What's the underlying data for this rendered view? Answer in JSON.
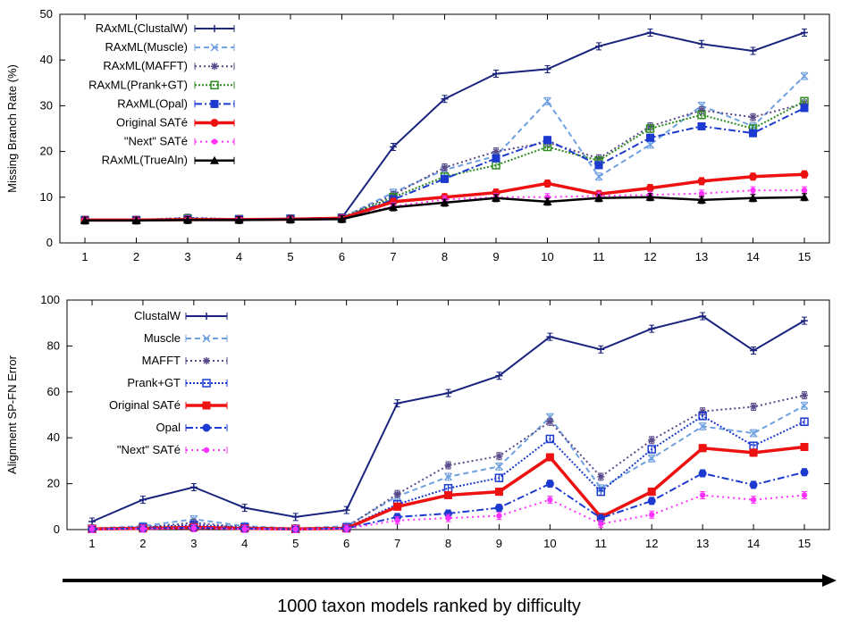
{
  "caption": "1000 taxon models ranked by difficulty",
  "chart_data": [
    {
      "type": "line",
      "ylabel": "Missing Branch Rate (%)",
      "xlabel": "",
      "x": [
        1,
        2,
        3,
        4,
        5,
        6,
        7,
        8,
        9,
        10,
        11,
        12,
        13,
        14,
        15
      ],
      "ylim": [
        0,
        50
      ],
      "yticks": [
        0,
        10,
        20,
        30,
        40,
        50
      ],
      "grid": false,
      "legend": "top-left",
      "series": [
        {
          "name": "RAxML(ClustalW)",
          "color": "#1a237e",
          "dash": "",
          "marker": "plus",
          "values": [
            5,
            5,
            5.2,
            5.2,
            5.3,
            5.5,
            21,
            31.5,
            37,
            38,
            43,
            46,
            43.5,
            42,
            46
          ]
        },
        {
          "name": "RAxML(Muscle)",
          "color": "#6fa0e0",
          "dash": "6,4",
          "marker": "x",
          "values": [
            5,
            5,
            5.5,
            5.2,
            5.3,
            5.5,
            11,
            16,
            19,
            31,
            14.5,
            21.5,
            30,
            25.5,
            36.5
          ]
        },
        {
          "name": "RAxML(MAFFT)",
          "color": "#5a4a8a",
          "dash": "2,3",
          "marker": "star",
          "values": [
            5,
            5,
            5.5,
            5.2,
            5.3,
            5.5,
            10.5,
            16.5,
            20,
            22,
            18.5,
            25.5,
            29,
            27.5,
            30.5
          ]
        },
        {
          "name": "RAxML(Prank+GT)",
          "color": "#2e8b20",
          "dash": "2,2",
          "marker": "square",
          "values": [
            5,
            5,
            5.3,
            5.2,
            5.3,
            5.5,
            10,
            14.5,
            17,
            21,
            18,
            25,
            28,
            25,
            31
          ]
        },
        {
          "name": "RAxML(Opal)",
          "color": "#1c3ad0",
          "dash": "8,3,2,3",
          "marker": "filledsquare",
          "values": [
            5,
            5,
            5.2,
            5.2,
            5.3,
            5.5,
            9.5,
            14,
            18.5,
            22.5,
            17,
            23,
            25.5,
            24,
            29.5
          ]
        },
        {
          "name": "Original SATé",
          "color": "#ee1111",
          "dash": "",
          "marker": "circle",
          "width": 3.5,
          "values": [
            5,
            5,
            5.1,
            5.1,
            5.2,
            5.4,
            9,
            10,
            11,
            13,
            10.7,
            12,
            13.5,
            14.5,
            15
          ]
        },
        {
          "name": "\"Next\" SATé",
          "color": "#ff33ff",
          "dash": "2,4",
          "marker": "dot",
          "values": [
            5,
            5,
            5.1,
            5.1,
            5.2,
            5.3,
            8,
            9.5,
            10,
            10,
            10.3,
            10.5,
            10.8,
            11.5,
            11.5
          ]
        },
        {
          "name": "RAxML(TrueAln)",
          "color": "#000000",
          "dash": "",
          "marker": "triangle",
          "width": 2.5,
          "values": [
            4.9,
            4.9,
            5,
            5,
            5.1,
            5.2,
            7.8,
            8.8,
            9.8,
            9,
            9.8,
            10,
            9.4,
            9.8,
            10
          ]
        }
      ]
    },
    {
      "type": "line",
      "ylabel": "Alignment SP-FN Error",
      "xlabel": "",
      "x": [
        1,
        2,
        3,
        4,
        5,
        6,
        7,
        8,
        9,
        10,
        11,
        12,
        13,
        14,
        15
      ],
      "ylim": [
        0,
        100
      ],
      "yticks": [
        0,
        20,
        40,
        60,
        80,
        100
      ],
      "grid": false,
      "legend": "top-left",
      "series": [
        {
          "name": "ClustalW",
          "color": "#1a237e",
          "dash": "",
          "marker": "plus",
          "values": [
            3.5,
            13,
            18.5,
            9.5,
            5.5,
            8.5,
            55,
            59.5,
            67,
            84,
            78.5,
            87.5,
            93,
            78,
            91
          ]
        },
        {
          "name": "Muscle",
          "color": "#6fa0e0",
          "dash": "6,4",
          "marker": "x",
          "values": [
            0.5,
            1.5,
            4.5,
            1.5,
            0.5,
            1.5,
            14.5,
            23,
            27.5,
            49,
            18,
            31,
            45,
            42,
            54
          ]
        },
        {
          "name": "MAFFT",
          "color": "#5a4a8a",
          "dash": "2,3",
          "marker": "star",
          "values": [
            0.5,
            1,
            3,
            1,
            0.5,
            1,
            15.5,
            28,
            32,
            47,
            23,
            39,
            51.5,
            53.5,
            58.5
          ]
        },
        {
          "name": "Prank+GT",
          "color": "#1c3ad0",
          "dash": "2,2",
          "marker": "square",
          "values": [
            0.3,
            1,
            2,
            1,
            0.3,
            0.8,
            11,
            18,
            22.5,
            39.5,
            16.5,
            35,
            49.5,
            36.5,
            47
          ]
        },
        {
          "name": "Original SATé",
          "color": "#ee1111",
          "dash": "",
          "marker": "filledsquare",
          "width": 3.5,
          "values": [
            0.3,
            0.5,
            1,
            0.5,
            0.3,
            0.5,
            10,
            15,
            16.5,
            31.5,
            5.5,
            16.5,
            35.5,
            33.5,
            36
          ]
        },
        {
          "name": "Opal",
          "color": "#1c3ad0",
          "dash": "8,3,2,3",
          "marker": "circle",
          "values": [
            0.2,
            0.5,
            0.8,
            0.4,
            0.2,
            0.5,
            5.5,
            7,
            9.5,
            20,
            5,
            12.5,
            24.5,
            19.5,
            25
          ]
        },
        {
          "name": "\"Next\" SATé",
          "color": "#ff33ff",
          "dash": "2,4",
          "marker": "dot",
          "values": [
            0.2,
            0.4,
            0.6,
            0.3,
            0.2,
            0.4,
            4,
            5,
            6,
            13,
            2.5,
            6.5,
            15,
            13,
            15
          ]
        }
      ]
    }
  ]
}
